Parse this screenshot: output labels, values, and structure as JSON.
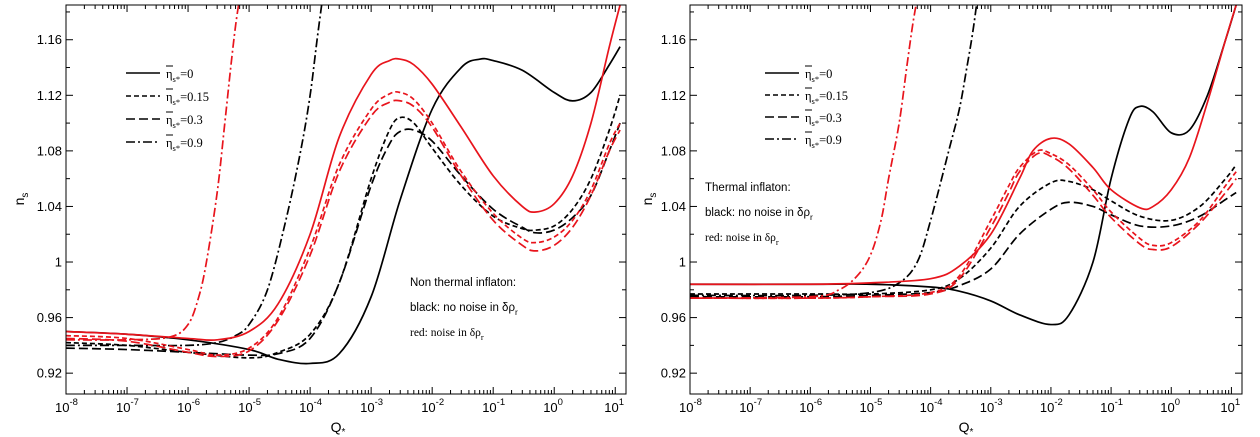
{
  "panels": [
    {
      "xlabel_main": "Q",
      "xlabel_sub": "*",
      "ylabel_main": "n",
      "ylabel_sub": "s",
      "x_tick_labels": [
        {
          "exp": "-8"
        },
        {
          "exp": "-7"
        },
        {
          "exp": "-6"
        },
        {
          "exp": "-5"
        },
        {
          "exp": "-4"
        },
        {
          "exp": "-3"
        },
        {
          "exp": "-2"
        },
        {
          "exp": "-1"
        },
        {
          "exp": "0"
        },
        {
          "exp": "1"
        }
      ],
      "y_tick_labels": [
        "0.92",
        "0.96",
        "1",
        "1.04",
        "1.08",
        "1.12",
        "1.16"
      ],
      "legend": [
        {
          "prefix": "η",
          "sub": "s*",
          "value": "=0"
        },
        {
          "prefix": "η",
          "sub": "s*",
          "value": "=0.15"
        },
        {
          "prefix": "η",
          "sub": "s*",
          "value": "=0.3"
        },
        {
          "prefix": "η",
          "sub": "s*",
          "value": "=0.9"
        }
      ],
      "annotation": {
        "title": "Non thermal inflaton:",
        "line2_text": "black: no noise in δρ",
        "line2_sub": "r",
        "line3_text": "red: noise in δρ",
        "line3_sub": "r"
      }
    },
    {
      "xlabel_main": "Q",
      "xlabel_sub": "*",
      "ylabel_main": "n",
      "ylabel_sub": "s",
      "x_tick_labels": [
        {
          "exp": "-8"
        },
        {
          "exp": "-7"
        },
        {
          "exp": "-6"
        },
        {
          "exp": "-5"
        },
        {
          "exp": "-4"
        },
        {
          "exp": "-3"
        },
        {
          "exp": "-2"
        },
        {
          "exp": "-1"
        },
        {
          "exp": "0"
        },
        {
          "exp": "1"
        }
      ],
      "y_tick_labels": [
        "0.92",
        "0.96",
        "1",
        "1.04",
        "1.08",
        "1.12",
        "1.16"
      ],
      "legend": [
        {
          "prefix": "η",
          "sub": "s*",
          "value": "=0"
        },
        {
          "prefix": "η",
          "sub": "s*",
          "value": "=0.15"
        },
        {
          "prefix": "η",
          "sub": "s*",
          "value": "=0.3"
        },
        {
          "prefix": "η",
          "sub": "s*",
          "value": "=0.9"
        }
      ],
      "annotation": {
        "title": "Thermal inflaton:",
        "line2_text": "black: no noise in δρ",
        "line2_sub": "r",
        "line3_text": "red: noise in δρ",
        "line3_sub": "r"
      }
    }
  ],
  "chart_data": [
    {
      "type": "line",
      "xscale": "log",
      "xlim": [
        1e-08,
        15
      ],
      "ylim": [
        0.905,
        1.185
      ],
      "xlabel": "Q*",
      "ylabel": "ns",
      "grid": false,
      "legend_position": "top-left",
      "colors": {
        "no_noise": "#000000",
        "noise": "#e8141c"
      },
      "series": [
        {
          "name": "η̄s*=0",
          "noise": false,
          "dash": "solid",
          "x": [
            1e-08,
            1e-07,
            1e-06,
            1e-05,
            3e-05,
            0.0001,
            0.0003,
            0.001,
            0.003,
            0.01,
            0.03,
            0.06,
            0.1,
            0.3,
            1,
            2,
            4,
            8,
            12
          ],
          "y": [
            0.95,
            0.948,
            0.944,
            0.937,
            0.93,
            0.927,
            0.934,
            0.975,
            1.045,
            1.11,
            1.14,
            1.146,
            1.145,
            1.138,
            1.122,
            1.116,
            1.122,
            1.142,
            1.155
          ]
        },
        {
          "name": "η̄s*=0.15",
          "noise": false,
          "dash": "dash",
          "x": [
            1e-08,
            1e-07,
            1e-06,
            1e-05,
            3e-05,
            0.0001,
            0.0003,
            0.001,
            0.002,
            0.003,
            0.005,
            0.01,
            0.03,
            0.1,
            0.3,
            0.5,
            1,
            2,
            4,
            8,
            12
          ],
          "y": [
            0.942,
            0.94,
            0.935,
            0.931,
            0.935,
            0.948,
            0.985,
            1.06,
            1.095,
            1.104,
            1.1,
            1.082,
            1.055,
            1.033,
            1.024,
            1.023,
            1.026,
            1.038,
            1.06,
            1.095,
            1.12
          ]
        },
        {
          "name": "η̄s*=0.3",
          "noise": false,
          "dash": "longdash",
          "x": [
            1e-08,
            1e-07,
            1e-06,
            3e-06,
            1e-05,
            3e-05,
            0.0001,
            0.0003,
            0.001,
            0.002,
            0.003,
            0.005,
            0.01,
            0.03,
            0.1,
            0.3,
            0.5,
            1,
            2,
            4,
            8,
            12
          ],
          "y": [
            0.938,
            0.937,
            0.935,
            0.934,
            0.933,
            0.934,
            0.945,
            0.985,
            1.055,
            1.085,
            1.094,
            1.095,
            1.087,
            1.062,
            1.038,
            1.025,
            1.021,
            1.023,
            1.032,
            1.048,
            1.08,
            1.1
          ]
        },
        {
          "name": "η̄s*=0.9",
          "noise": false,
          "dash": "dashdot",
          "x": [
            1e-08,
            1e-07,
            1e-06,
            3e-06,
            6e-06,
            1e-05,
            2e-05,
            4e-05,
            7e-05,
            0.0001,
            0.00013,
            0.00016
          ],
          "y": [
            0.94,
            0.94,
            0.94,
            0.942,
            0.947,
            0.955,
            0.98,
            1.03,
            1.08,
            1.12,
            1.16,
            1.19
          ]
        },
        {
          "name": "η̄s*=0",
          "noise": true,
          "dash": "solid",
          "x": [
            1e-08,
            1e-07,
            1e-06,
            3e-06,
            1e-05,
            3e-05,
            0.0001,
            0.0003,
            0.001,
            0.002,
            0.003,
            0.005,
            0.01,
            0.03,
            0.1,
            0.3,
            0.5,
            1,
            2,
            4,
            8,
            12
          ],
          "y": [
            0.95,
            0.948,
            0.945,
            0.944,
            0.95,
            0.97,
            1.02,
            1.09,
            1.135,
            1.145,
            1.146,
            1.142,
            1.128,
            1.097,
            1.062,
            1.04,
            1.036,
            1.042,
            1.062,
            1.1,
            1.155,
            1.185
          ]
        },
        {
          "name": "η̄s*=0.15",
          "noise": true,
          "dash": "dash",
          "x": [
            1e-08,
            1e-07,
            1e-06,
            3e-06,
            1e-05,
            3e-05,
            0.0001,
            0.0003,
            0.001,
            0.002,
            0.003,
            0.005,
            0.01,
            0.03,
            0.1,
            0.3,
            0.5,
            1,
            2,
            4,
            8,
            12
          ],
          "y": [
            0.947,
            0.945,
            0.937,
            0.933,
            0.938,
            0.96,
            1.01,
            1.07,
            1.11,
            1.121,
            1.122,
            1.117,
            1.1,
            1.065,
            1.035,
            1.017,
            1.014,
            1.018,
            1.03,
            1.052,
            1.085,
            1.1
          ]
        },
        {
          "name": "η̄s*=0.3",
          "noise": true,
          "dash": "longdash",
          "x": [
            1e-08,
            1e-07,
            1e-06,
            3e-06,
            1e-05,
            3e-05,
            0.0001,
            0.0003,
            0.001,
            0.002,
            0.003,
            0.005,
            0.01,
            0.03,
            0.1,
            0.3,
            0.5,
            1,
            2,
            4,
            8,
            12
          ],
          "y": [
            0.945,
            0.943,
            0.935,
            0.932,
            0.936,
            0.958,
            1.005,
            1.065,
            1.105,
            1.115,
            1.116,
            1.112,
            1.097,
            1.062,
            1.03,
            1.012,
            1.008,
            1.012,
            1.025,
            1.048,
            1.08,
            1.095
          ]
        },
        {
          "name": "η̄s*=0.9",
          "noise": true,
          "dash": "dashdot",
          "x": [
            1e-08,
            1e-07,
            5e-07,
            1e-06,
            1.5e-06,
            2e-06,
            3e-06,
            4e-06,
            5e-06,
            6e-06,
            7e-06
          ],
          "y": [
            0.944,
            0.944,
            0.946,
            0.955,
            0.975,
            1.0,
            1.05,
            1.1,
            1.14,
            1.17,
            1.19
          ]
        }
      ]
    },
    {
      "type": "line",
      "xscale": "log",
      "xlim": [
        1e-08,
        15
      ],
      "ylim": [
        0.905,
        1.185
      ],
      "xlabel": "Q*",
      "ylabel": "ns",
      "grid": false,
      "legend_position": "top-left",
      "colors": {
        "no_noise": "#000000",
        "noise": "#e8141c"
      },
      "series": [
        {
          "name": "η̄s*=0",
          "noise": false,
          "dash": "solid",
          "x": [
            1e-08,
            1e-06,
            1e-05,
            0.0001,
            0.0003,
            0.001,
            0.003,
            0.01,
            0.02,
            0.05,
            0.1,
            0.2,
            0.3,
            0.5,
            1,
            2,
            4,
            8,
            12
          ],
          "y": [
            0.984,
            0.984,
            0.984,
            0.982,
            0.979,
            0.972,
            0.962,
            0.955,
            0.962,
            1.0,
            1.06,
            1.103,
            1.112,
            1.108,
            1.093,
            1.095,
            1.12,
            1.16,
            1.185
          ]
        },
        {
          "name": "η̄s*=0.15",
          "noise": false,
          "dash": "dash",
          "x": [
            1e-08,
            1e-06,
            1e-05,
            0.0001,
            0.0003,
            0.001,
            0.003,
            0.01,
            0.02,
            0.05,
            0.1,
            0.3,
            1,
            3,
            8,
            12
          ],
          "y": [
            0.977,
            0.977,
            0.977,
            0.98,
            0.988,
            1.01,
            1.04,
            1.057,
            1.058,
            1.052,
            1.044,
            1.033,
            1.03,
            1.04,
            1.06,
            1.07
          ]
        },
        {
          "name": "η̄s*=0.3",
          "noise": false,
          "dash": "longdash",
          "x": [
            1e-08,
            1e-06,
            1e-05,
            0.0001,
            0.0003,
            0.001,
            0.003,
            0.01,
            0.02,
            0.05,
            0.1,
            0.3,
            1,
            3,
            8,
            12
          ],
          "y": [
            0.975,
            0.975,
            0.976,
            0.978,
            0.983,
            0.995,
            1.02,
            1.038,
            1.043,
            1.04,
            1.034,
            1.026,
            1.026,
            1.033,
            1.045,
            1.05
          ]
        },
        {
          "name": "η̄s*=0.9",
          "noise": false,
          "dash": "dashdot",
          "x": [
            1e-08,
            1e-06,
            1e-05,
            3e-05,
            6e-05,
            0.0001,
            0.0002,
            0.0003,
            0.0004,
            0.0005,
            0.0006
          ],
          "y": [
            0.976,
            0.976,
            0.978,
            0.985,
            1.0,
            1.03,
            1.08,
            1.11,
            1.14,
            1.165,
            1.19
          ]
        },
        {
          "name": "η̄s*=0",
          "noise": true,
          "dash": "solid",
          "x": [
            1e-08,
            1e-06,
            1e-05,
            0.0001,
            0.0003,
            0.001,
            0.003,
            0.005,
            0.01,
            0.02,
            0.05,
            0.1,
            0.3,
            0.5,
            1,
            2,
            4,
            8,
            12
          ],
          "y": [
            0.984,
            0.984,
            0.985,
            0.988,
            0.997,
            1.02,
            1.06,
            1.08,
            1.089,
            1.085,
            1.068,
            1.052,
            1.039,
            1.04,
            1.052,
            1.075,
            1.115,
            1.16,
            1.185
          ]
        },
        {
          "name": "η̄s*=0.15",
          "noise": true,
          "dash": "dash",
          "x": [
            1e-08,
            1e-06,
            1e-05,
            0.0001,
            0.0003,
            0.001,
            0.002,
            0.003,
            0.006,
            0.01,
            0.02,
            0.05,
            0.1,
            0.3,
            0.5,
            1,
            3,
            8,
            12
          ],
          "y": [
            0.974,
            0.974,
            0.975,
            0.978,
            0.99,
            1.03,
            1.055,
            1.068,
            1.08,
            1.078,
            1.07,
            1.052,
            1.036,
            1.017,
            1.012,
            1.014,
            1.03,
            1.055,
            1.065
          ]
        },
        {
          "name": "η̄s*=0.3",
          "noise": true,
          "dash": "longdash",
          "x": [
            1e-08,
            1e-06,
            1e-05,
            0.0001,
            0.0003,
            0.001,
            0.002,
            0.003,
            0.006,
            0.01,
            0.02,
            0.05,
            0.1,
            0.3,
            0.5,
            1,
            3,
            8,
            12
          ],
          "y": [
            0.974,
            0.974,
            0.975,
            0.977,
            0.988,
            1.025,
            1.05,
            1.065,
            1.078,
            1.076,
            1.067,
            1.048,
            1.032,
            1.013,
            1.009,
            1.011,
            1.028,
            1.05,
            1.06
          ]
        },
        {
          "name": "η̄s*=0.9",
          "noise": true,
          "dash": "dashdot",
          "x": [
            1e-08,
            1e-06,
            3e-06,
            6e-06,
            1e-05,
            1.5e-05,
            2e-05,
            3e-05,
            4e-05,
            5e-05,
            6e-05
          ],
          "y": [
            0.974,
            0.975,
            0.98,
            0.99,
            1.005,
            1.03,
            1.06,
            1.1,
            1.14,
            1.17,
            1.19
          ]
        }
      ]
    }
  ]
}
